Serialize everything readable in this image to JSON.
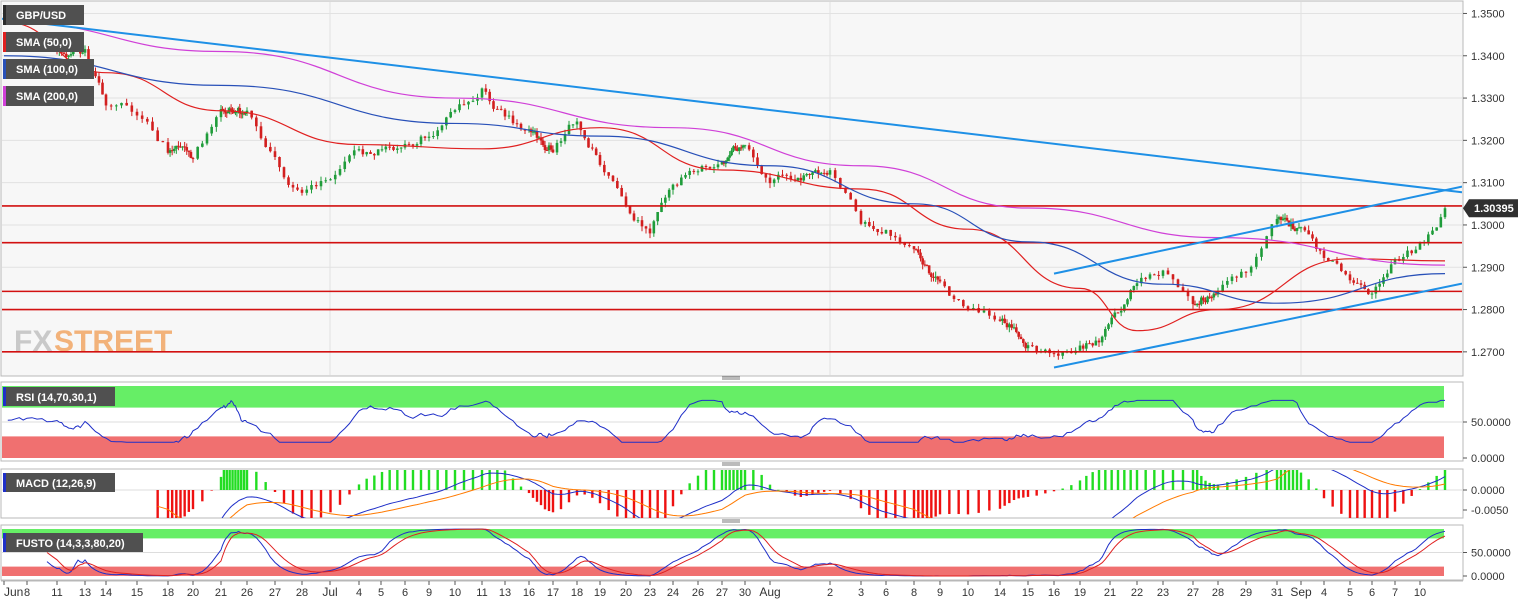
{
  "symbol": "GBP/USD",
  "brand": {
    "fx": "FX",
    "street": "STREET"
  },
  "last_price": "1.30395",
  "colors": {
    "up": "#1f9c3a",
    "down": "#d21f1f",
    "sma50": "#e02020",
    "sma100": "#2850b8",
    "sma200": "#d040d8",
    "trend": "#1e90e6",
    "hline": "#d21010",
    "rsi": "#1f2fc8",
    "macd": "#1f2fc8",
    "signal": "#ff7a00",
    "hist_up": "#22dd22",
    "hist_down": "#ee1111",
    "fast": "#1f2fc8",
    "slow": "#e02020",
    "overbought": "#66ee66",
    "oversold": "#f07070"
  },
  "indicators": {
    "sma50": "SMA (50,0)",
    "sma100": "SMA (100,0)",
    "sma200": "SMA (200,0)",
    "rsi": "RSI (14,70,30,1)",
    "macd": "MACD (12,26,9)",
    "fusto": "FUSTO (14,3,3,80,20)"
  },
  "chart_data": {
    "type": "candlestick",
    "price_axis": {
      "min": 1.265,
      "max": 1.352,
      "ticks": [
        "1.3500",
        "1.3400",
        "1.3300",
        "1.3200",
        "1.3100",
        "1.3000",
        "1.2900",
        "1.2800",
        "1.2700"
      ]
    },
    "rsi_axis": {
      "min": 0,
      "max": 100,
      "ticks": [
        "50.0000",
        "0.0000"
      ],
      "levels": [
        30,
        70
      ]
    },
    "macd_axis": {
      "min": -0.0065,
      "max": 0.0045,
      "ticks": [
        "0.0000",
        "-0.0050"
      ]
    },
    "fusto_axis": {
      "min": 0,
      "max": 100,
      "ticks": [
        "50.0000",
        "0.0000"
      ],
      "levels": [
        20,
        80
      ]
    },
    "date_labels": [
      "Jun",
      "8",
      "11",
      "13",
      "14",
      "15",
      "18",
      "20",
      "21",
      "26",
      "27",
      "28",
      "Jul",
      "4",
      "5",
      "6",
      "9",
      "10",
      "11",
      "13",
      "16",
      "17",
      "18",
      "19",
      "20",
      "23",
      "24",
      "26",
      "27",
      "30",
      "Aug",
      "2",
      "3",
      "6",
      "8",
      "9",
      "10",
      "14",
      "15",
      "16",
      "19",
      "21",
      "22",
      "23",
      "27",
      "28",
      "29",
      "31",
      "Sep",
      "4",
      "5",
      "6",
      "7",
      "10"
    ],
    "horizontal_levels": [
      1.3045,
      1.2958,
      1.2843,
      1.28,
      1.27
    ],
    "trendlines": [
      {
        "from": [
          "Jun 7",
          1.3487
        ],
        "to": [
          "Sep 10",
          1.3082
        ]
      },
      {
        "from": [
          "Aug 15",
          1.2885
        ],
        "to": [
          "Sep 10",
          1.3082
        ]
      },
      {
        "from": [
          "Aug 15",
          1.2663
        ],
        "to": [
          "Sep 10",
          1.2853
        ]
      }
    ],
    "close_path": [
      [
        "Jun 7",
        1.342
      ],
      [
        "Jun 13",
        1.341
      ],
      [
        "Jun 14",
        1.33
      ],
      [
        "Jun 15",
        1.327
      ],
      [
        "Jun 18",
        1.318
      ],
      [
        "Jun 20",
        1.316
      ],
      [
        "Jun 21",
        1.326
      ],
      [
        "Jun 26",
        1.327
      ],
      [
        "Jun 27",
        1.315
      ],
      [
        "Jun 28",
        1.307
      ],
      [
        "Jul 2",
        1.317
      ],
      [
        "Jul 4",
        1.319
      ],
      [
        "Jul 5",
        1.322
      ],
      [
        "Jul 6",
        1.326
      ],
      [
        "Jul 9",
        1.333
      ],
      [
        "Jul 10",
        1.325
      ],
      [
        "Jul 11",
        1.322
      ],
      [
        "Jul 13",
        1.318
      ],
      [
        "Jul 16",
        1.325
      ],
      [
        "Jul 17",
        1.315
      ],
      [
        "Jul 18",
        1.305
      ],
      [
        "Jul 19",
        1.299
      ],
      [
        "Jul 20",
        1.31
      ],
      [
        "Jul 23",
        1.313
      ],
      [
        "Jul 24",
        1.316
      ],
      [
        "Jul 26",
        1.318
      ],
      [
        "Jul 27",
        1.311
      ],
      [
        "Jul 30",
        1.312
      ],
      [
        "Aug 1",
        1.312
      ],
      [
        "Aug 2",
        1.301
      ],
      [
        "Aug 3",
        1.299
      ],
      [
        "Aug 6",
        1.293
      ],
      [
        "Aug 8",
        1.286
      ],
      [
        "Aug 9",
        1.28
      ],
      [
        "Aug 10",
        1.278
      ],
      [
        "Aug 14",
        1.272
      ],
      [
        "Aug 15",
        1.269
      ],
      [
        "Aug 16",
        1.271
      ],
      [
        "Aug 19",
        1.272
      ],
      [
        "Aug 21",
        1.287
      ],
      [
        "Aug 22",
        1.29
      ],
      [
        "Aug 23",
        1.282
      ],
      [
        "Aug 27",
        1.285
      ],
      [
        "Aug 28",
        1.288
      ],
      [
        "Aug 29",
        1.302
      ],
      [
        "Aug 31",
        1.298
      ],
      [
        "Sep 3",
        1.291
      ],
      [
        "Sep 4",
        1.287
      ],
      [
        "Sep 5",
        1.283
      ],
      [
        "Sep 6",
        1.293
      ],
      [
        "Sep 7",
        1.295
      ],
      [
        "Sep 10",
        1.30395
      ]
    ],
    "series": [
      {
        "name": "SMA (50,0)",
        "values": [
          [
            "Jun 7",
            1.348
          ],
          [
            "Jun 14",
            1.336
          ],
          [
            "Jun 21",
            1.327
          ],
          [
            "Jul 2",
            1.319
          ],
          [
            "Jul 9",
            1.318
          ],
          [
            "Jul 17",
            1.323
          ],
          [
            "Jul 24",
            1.313
          ],
          [
            "Aug 2",
            1.3085
          ],
          [
            "Aug 9",
            1.299
          ],
          [
            "Aug 16",
            1.285
          ],
          [
            "Aug 21",
            1.275
          ],
          [
            "Aug 27",
            1.28
          ],
          [
            "Sep 4",
            1.292
          ],
          [
            "Sep 10",
            1.2915
          ]
        ]
      },
      {
        "name": "SMA (100,0)",
        "values": [
          [
            "Jun 7",
            1.34
          ],
          [
            "Jun 21",
            1.333
          ],
          [
            "Jul 6",
            1.324
          ],
          [
            "Jul 17",
            1.321
          ],
          [
            "Jul 27",
            1.314
          ],
          [
            "Aug 6",
            1.305
          ],
          [
            "Aug 14",
            1.296
          ],
          [
            "Aug 22",
            1.286
          ],
          [
            "Aug 29",
            1.2815
          ],
          [
            "Sep 10",
            1.2885
          ]
        ]
      },
      {
        "name": "SMA (200,0)",
        "values": [
          [
            "Jun 7",
            1.348
          ],
          [
            "Jun 21",
            1.341
          ],
          [
            "Jul 6",
            1.33
          ],
          [
            "Jul 20",
            1.323
          ],
          [
            "Aug 2",
            1.314
          ],
          [
            "Aug 14",
            1.304
          ],
          [
            "Aug 27",
            1.297
          ],
          [
            "Sep 10",
            1.2905
          ]
        ]
      }
    ]
  }
}
